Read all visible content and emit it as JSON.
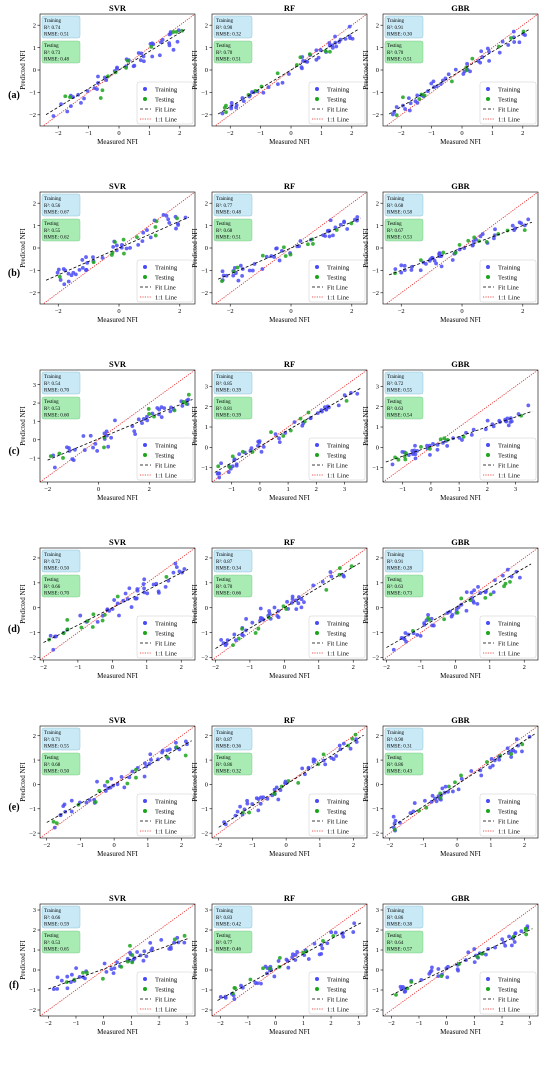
{
  "figure": {
    "model_titles": [
      "SVR",
      "RF",
      "GBR"
    ],
    "xlabel": "Measured NFI",
    "ylabel": "Predicted NFI",
    "legend": {
      "training": "Training",
      "testing": "Testing",
      "fit_line": "Fit Line",
      "one_to_one": "1:1 Line"
    },
    "metric_labels": {
      "training": "Training",
      "testing": "Testing",
      "r2": "R²:",
      "rmse": "RMSE:"
    },
    "colors": {
      "training": "#4b4bf5",
      "testing": "#1ca51c",
      "fit_line": "#000000",
      "one_to_one": "#e82020",
      "training_box": "#c9e9f6",
      "testing_box": "#a8ecb4"
    }
  },
  "chart_data": [
    {
      "row_label": "(a)",
      "type": "scatter",
      "panels": [
        {
          "title": "SVR",
          "xlim": [
            -2.6,
            2.5
          ],
          "ylim": [
            -2.5,
            2.5
          ],
          "xticks": [
            -2,
            -1,
            0,
            1,
            2
          ],
          "yticks": [
            -2,
            -1,
            0,
            1,
            2
          ],
          "train": {
            "r2": "0.74",
            "rmse": "0.51"
          },
          "test": {
            "r2": "0.73",
            "rmse": "0.48"
          },
          "fit": {
            "slope": 0.83,
            "intercept": 0.0
          },
          "seed": 11,
          "n_train": 44,
          "n_test": 12,
          "spread": 0.38,
          "xrange": [
            -2.3,
            2.1
          ]
        },
        {
          "title": "RF",
          "xlim": [
            -2.6,
            2.5
          ],
          "ylim": [
            -2.5,
            2.5
          ],
          "xticks": [
            -2,
            -1,
            0,
            1,
            2
          ],
          "yticks": [
            -2,
            -1,
            0,
            1,
            2
          ],
          "train": {
            "r2": "0.90",
            "rmse": "0.32"
          },
          "test": {
            "r2": "0.70",
            "rmse": "0.51"
          },
          "fit": {
            "slope": 0.82,
            "intercept": 0.0
          },
          "seed": 12,
          "n_train": 44,
          "n_test": 12,
          "spread": 0.28,
          "xrange": [
            -2.3,
            2.1
          ]
        },
        {
          "title": "GBR",
          "xlim": [
            -2.6,
            2.5
          ],
          "ylim": [
            -2.5,
            2.5
          ],
          "xticks": [
            -2,
            -1,
            0,
            1,
            2
          ],
          "yticks": [
            -2,
            -1,
            0,
            1,
            2
          ],
          "train": {
            "r2": "0.91",
            "rmse": "0.30"
          },
          "test": {
            "r2": "0.70",
            "rmse": "0.51"
          },
          "fit": {
            "slope": 0.82,
            "intercept": 0.0
          },
          "seed": 13,
          "n_train": 44,
          "n_test": 12,
          "spread": 0.27,
          "xrange": [
            -2.3,
            2.1
          ]
        }
      ]
    },
    {
      "row_label": "(b)",
      "type": "scatter",
      "panels": [
        {
          "title": "SVR",
          "xlim": [
            -2.6,
            2.5
          ],
          "ylim": [
            -2.5,
            2.5
          ],
          "xticks": [
            -2,
            0,
            2
          ],
          "yticks": [
            -2,
            -1,
            0,
            1,
            2
          ],
          "train": {
            "r2": "0.56",
            "rmse": "0.67"
          },
          "test": {
            "r2": "0.55",
            "rmse": "0.62"
          },
          "fit": {
            "slope": 0.6,
            "intercept": 0.0
          },
          "seed": 21,
          "n_train": 44,
          "n_test": 12,
          "spread": 0.35,
          "xrange": [
            -2.3,
            2.2
          ]
        },
        {
          "title": "RF",
          "xlim": [
            -2.6,
            2.5
          ],
          "ylim": [
            -2.5,
            2.5
          ],
          "xticks": [
            -2,
            0,
            2
          ],
          "yticks": [
            -2,
            -1,
            0,
            1,
            2
          ],
          "train": {
            "r2": "0.77",
            "rmse": "0.48"
          },
          "test": {
            "r2": "0.68",
            "rmse": "0.51"
          },
          "fit": {
            "slope": 0.58,
            "intercept": 0.0
          },
          "seed": 22,
          "n_train": 44,
          "n_test": 12,
          "spread": 0.28,
          "xrange": [
            -2.3,
            2.2
          ]
        },
        {
          "title": "GBR",
          "xlim": [
            -2.6,
            2.5
          ],
          "ylim": [
            -2.5,
            2.5
          ],
          "xticks": [
            -2,
            0,
            2
          ],
          "yticks": [
            -2,
            -1,
            0,
            1,
            2
          ],
          "train": {
            "r2": "0.68",
            "rmse": "0.58"
          },
          "test": {
            "r2": "0.67",
            "rmse": "0.53"
          },
          "fit": {
            "slope": 0.5,
            "intercept": 0.0
          },
          "seed": 23,
          "n_train": 44,
          "n_test": 12,
          "spread": 0.26,
          "xrange": [
            -2.3,
            2.2
          ]
        }
      ]
    },
    {
      "row_label": "(c)",
      "type": "scatter",
      "panels": [
        {
          "title": "SVR",
          "xlim": [
            -2.3,
            3.8
          ],
          "ylim": [
            -2.3,
            3.8
          ],
          "xticks": [
            -2,
            0,
            2
          ],
          "yticks": [
            -1,
            0,
            1,
            2,
            3
          ],
          "train": {
            "r2": "0.54",
            "rmse": "0.70"
          },
          "test": {
            "r2": "0.53",
            "rmse": "0.60"
          },
          "fit": {
            "slope": 0.58,
            "intercept": 0.05
          },
          "seed": 31,
          "n_train": 44,
          "n_test": 12,
          "spread": 0.4,
          "xrange": [
            -1.9,
            3.6
          ]
        },
        {
          "title": "RF",
          "xlim": [
            -1.7,
            3.8
          ],
          "ylim": [
            -1.7,
            3.8
          ],
          "xticks": [
            -1,
            0,
            1,
            2,
            3
          ],
          "yticks": [
            -1,
            0,
            1,
            2,
            3
          ],
          "train": {
            "r2": "0.85",
            "rmse": "0.39"
          },
          "test": {
            "r2": "0.81",
            "rmse": "0.39"
          },
          "fit": {
            "slope": 0.8,
            "intercept": 0.05
          },
          "seed": 32,
          "n_train": 44,
          "n_test": 12,
          "spread": 0.25,
          "xrange": [
            -1.5,
            3.5
          ]
        },
        {
          "title": "GBR",
          "xlim": [
            -1.7,
            3.8
          ],
          "ylim": [
            -1.7,
            3.8
          ],
          "xticks": [
            -1,
            0,
            1,
            2,
            3
          ],
          "yticks": [
            -1,
            0,
            1,
            2,
            3
          ],
          "train": {
            "r2": "0.72",
            "rmse": "0.55"
          },
          "test": {
            "r2": "0.63",
            "rmse": "0.54"
          },
          "fit": {
            "slope": 0.48,
            "intercept": 0.05
          },
          "seed": 33,
          "n_train": 44,
          "n_test": 12,
          "spread": 0.22,
          "xrange": [
            -1.5,
            3.5
          ]
        }
      ]
    },
    {
      "row_label": "(d)",
      "type": "scatter",
      "panels": [
        {
          "title": "SVR",
          "xlim": [
            -2.1,
            2.4
          ],
          "ylim": [
            -2.1,
            2.4
          ],
          "xticks": [
            -2,
            -1,
            0,
            1,
            2
          ],
          "yticks": [
            -2,
            -1,
            0,
            1,
            2
          ],
          "train": {
            "r2": "0.72",
            "rmse": "0.50"
          },
          "test": {
            "r2": "0.66",
            "rmse": "0.70"
          },
          "fit": {
            "slope": 0.7,
            "intercept": 0.0
          },
          "seed": 41,
          "n_train": 44,
          "n_test": 12,
          "spread": 0.35,
          "xrange": [
            -1.9,
            2.1
          ]
        },
        {
          "title": "RF",
          "xlim": [
            -2.1,
            2.4
          ],
          "ylim": [
            -2.1,
            2.4
          ],
          "xticks": [
            -2,
            -1,
            0,
            1,
            2
          ],
          "yticks": [
            -2,
            -1,
            0,
            1,
            2
          ],
          "train": {
            "r2": "0.87",
            "rmse": "0.34"
          },
          "test": {
            "r2": "0.70",
            "rmse": "0.66"
          },
          "fit": {
            "slope": 0.82,
            "intercept": 0.0
          },
          "seed": 42,
          "n_train": 44,
          "n_test": 12,
          "spread": 0.28,
          "xrange": [
            -1.9,
            2.1
          ]
        },
        {
          "title": "GBR",
          "xlim": [
            -2.1,
            2.4
          ],
          "ylim": [
            -2.1,
            2.4
          ],
          "xticks": [
            -2,
            -1,
            0,
            1,
            2
          ],
          "yticks": [
            -2,
            -1,
            0,
            1,
            2
          ],
          "train": {
            "r2": "0.91",
            "rmse": "0.28"
          },
          "test": {
            "r2": "0.63",
            "rmse": "0.73"
          },
          "fit": {
            "slope": 0.8,
            "intercept": 0.0
          },
          "seed": 43,
          "n_train": 44,
          "n_test": 12,
          "spread": 0.25,
          "xrange": [
            -1.9,
            2.1
          ]
        }
      ]
    },
    {
      "row_label": "(e)",
      "type": "scatter",
      "panels": [
        {
          "title": "SVR",
          "xlim": [
            -2.2,
            2.4
          ],
          "ylim": [
            -2.2,
            2.4
          ],
          "xticks": [
            -2,
            -1,
            0,
            1,
            2
          ],
          "yticks": [
            -2,
            -1,
            0,
            1,
            2
          ],
          "train": {
            "r2": "0.71",
            "rmse": "0.55"
          },
          "test": {
            "r2": "0.68",
            "rmse": "0.50"
          },
          "fit": {
            "slope": 0.78,
            "intercept": 0.0
          },
          "seed": 51,
          "n_train": 44,
          "n_test": 12,
          "spread": 0.32,
          "xrange": [
            -1.9,
            2.2
          ]
        },
        {
          "title": "RF",
          "xlim": [
            -2.2,
            2.4
          ],
          "ylim": [
            -2.2,
            2.4
          ],
          "xticks": [
            -2,
            -1,
            0,
            1,
            2
          ],
          "yticks": [
            -2,
            -1,
            0,
            1,
            2
          ],
          "train": {
            "r2": "0.87",
            "rmse": "0.36"
          },
          "test": {
            "r2": "0.86",
            "rmse": "0.32"
          },
          "fit": {
            "slope": 0.88,
            "intercept": 0.0
          },
          "seed": 52,
          "n_train": 44,
          "n_test": 12,
          "spread": 0.25,
          "xrange": [
            -1.9,
            2.2
          ]
        },
        {
          "title": "GBR",
          "xlim": [
            -2.2,
            2.4
          ],
          "ylim": [
            -2.2,
            2.4
          ],
          "xticks": [
            -2,
            -1,
            0,
            1,
            2
          ],
          "yticks": [
            -2,
            -1,
            0,
            1,
            2
          ],
          "train": {
            "r2": "0.90",
            "rmse": "0.31"
          },
          "test": {
            "r2": "0.86",
            "rmse": "0.43"
          },
          "fit": {
            "slope": 0.9,
            "intercept": 0.0
          },
          "seed": 53,
          "n_train": 44,
          "n_test": 12,
          "spread": 0.24,
          "xrange": [
            -1.9,
            2.2
          ]
        }
      ]
    },
    {
      "row_label": "(f)",
      "type": "scatter",
      "panels": [
        {
          "title": "SVR",
          "xlim": [
            -2.3,
            3.3
          ],
          "ylim": [
            -2.3,
            3.3
          ],
          "xticks": [
            -2,
            -1,
            0,
            1,
            2,
            3
          ],
          "yticks": [
            -2,
            -1,
            0,
            1,
            2,
            3
          ],
          "train": {
            "r2": "0.66",
            "rmse": "0.59"
          },
          "test": {
            "r2": "0.53",
            "rmse": "0.65"
          },
          "fit": {
            "slope": 0.5,
            "intercept": 0.05
          },
          "seed": 61,
          "n_train": 44,
          "n_test": 12,
          "spread": 0.32,
          "xrange": [
            -1.9,
            3.0
          ]
        },
        {
          "title": "RF",
          "xlim": [
            -2.3,
            3.3
          ],
          "ylim": [
            -2.3,
            3.3
          ],
          "xticks": [
            -2,
            -1,
            0,
            1,
            2,
            3
          ],
          "yticks": [
            -2,
            -1,
            0,
            1,
            2,
            3
          ],
          "train": {
            "r2": "0.83",
            "rmse": "0.42"
          },
          "test": {
            "r2": "0.77",
            "rmse": "0.46"
          },
          "fit": {
            "slope": 0.75,
            "intercept": 0.05
          },
          "seed": 62,
          "n_train": 44,
          "n_test": 12,
          "spread": 0.28,
          "xrange": [
            -2.0,
            3.0
          ]
        },
        {
          "title": "GBR",
          "xlim": [
            -2.3,
            3.3
          ],
          "ylim": [
            -2.3,
            3.3
          ],
          "xticks": [
            -2,
            -1,
            0,
            1,
            2,
            3
          ],
          "yticks": [
            -2,
            -1,
            0,
            1,
            2,
            3
          ],
          "train": {
            "r2": "0.86",
            "rmse": "0.38"
          },
          "test": {
            "r2": "0.64",
            "rmse": "0.57"
          },
          "fit": {
            "slope": 0.65,
            "intercept": 0.05
          },
          "seed": 63,
          "n_train": 44,
          "n_test": 12,
          "spread": 0.25,
          "xrange": [
            -1.9,
            3.0
          ]
        }
      ]
    }
  ]
}
